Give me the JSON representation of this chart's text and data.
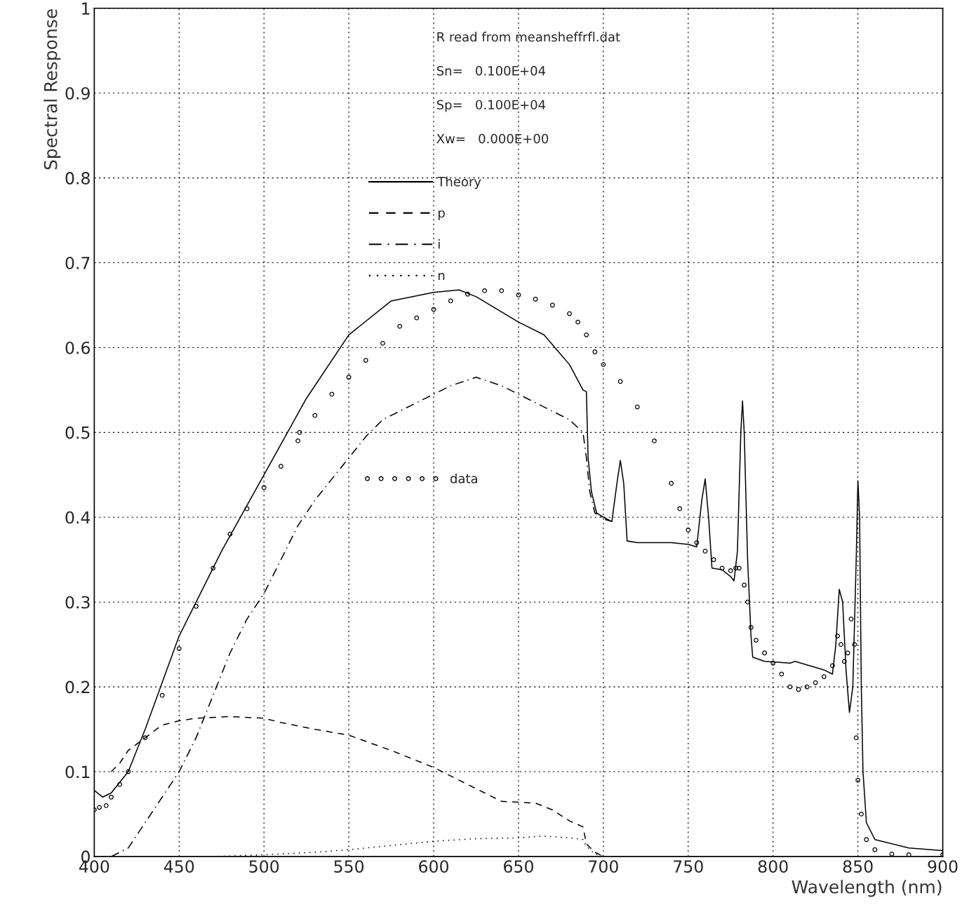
{
  "chart_data": {
    "type": "line",
    "xlabel": "Wavelength (nm)",
    "ylabel": "Spectral Response",
    "annotations": [
      "R read from meansheffrfl.dat",
      "Sn=   0.100E+04",
      "Sp=   0.100E+04",
      "Xw=   0.000E+00"
    ],
    "xlim": [
      400,
      900
    ],
    "ylim": [
      0,
      1
    ],
    "xticks": [
      400,
      450,
      500,
      550,
      600,
      650,
      700,
      750,
      800,
      850,
      900
    ],
    "yticks": [
      0,
      0.1,
      0.2,
      0.3,
      0.4,
      0.5,
      0.6,
      0.7,
      0.8,
      0.9,
      1
    ],
    "grid": true,
    "legend": "top",
    "series": [
      {
        "name": "Theory",
        "line_style": "solid",
        "color": "#000000",
        "x": [
          400,
          405,
          410,
          420,
          430,
          450,
          475,
          500,
          525,
          550,
          575,
          600,
          615,
          625,
          650,
          665,
          680,
          688,
          690,
          691,
          693,
          696,
          700,
          705,
          708,
          710,
          712,
          714,
          720,
          740,
          750,
          755,
          758,
          760,
          762,
          764,
          770,
          775,
          777,
          779,
          781,
          782,
          783,
          785,
          787,
          788,
          795,
          810,
          813,
          830,
          835,
          837,
          839,
          841,
          843,
          845,
          847,
          849,
          850,
          851,
          852,
          853,
          855,
          860,
          880,
          900
        ],
        "values": [
          0.078,
          0.07,
          0.075,
          0.1,
          0.15,
          0.26,
          0.36,
          0.45,
          0.54,
          0.615,
          0.655,
          0.665,
          0.668,
          0.66,
          0.63,
          0.615,
          0.58,
          0.55,
          0.548,
          0.47,
          0.43,
          0.405,
          0.4,
          0.395,
          0.44,
          0.467,
          0.44,
          0.372,
          0.37,
          0.37,
          0.368,
          0.365,
          0.42,
          0.445,
          0.4,
          0.34,
          0.338,
          0.33,
          0.325,
          0.36,
          0.5,
          0.537,
          0.5,
          0.35,
          0.26,
          0.235,
          0.23,
          0.228,
          0.23,
          0.22,
          0.215,
          0.25,
          0.315,
          0.3,
          0.22,
          0.17,
          0.2,
          0.35,
          0.443,
          0.4,
          0.2,
          0.1,
          0.04,
          0.02,
          0.01,
          0.007
        ]
      },
      {
        "name": "p",
        "line_style": "dashed",
        "color": "#000000",
        "x": [
          410,
          415,
          420,
          430,
          440,
          450,
          460,
          480,
          500,
          510,
          530,
          550,
          575,
          600,
          625,
          640,
          660,
          670,
          680,
          688,
          690,
          695,
          700
        ],
        "values": [
          0.1,
          0.11,
          0.125,
          0.14,
          0.155,
          0.16,
          0.163,
          0.165,
          0.163,
          0.158,
          0.15,
          0.143,
          0.125,
          0.105,
          0.08,
          0.065,
          0.063,
          0.055,
          0.042,
          0.035,
          0.015,
          0.005,
          0.0
        ]
      },
      {
        "name": "i",
        "line_style": "dashdot",
        "color": "#000000",
        "x": [
          410,
          420,
          430,
          440,
          450,
          460,
          470,
          480,
          490,
          500,
          510,
          520,
          530,
          540,
          550,
          560,
          570,
          580,
          590,
          600,
          610,
          625,
          640,
          660,
          680,
          688,
          690,
          692,
          695,
          700,
          705
        ],
        "values": [
          0.0,
          0.01,
          0.04,
          0.07,
          0.1,
          0.14,
          0.19,
          0.24,
          0.28,
          0.31,
          0.35,
          0.39,
          0.42,
          0.445,
          0.47,
          0.495,
          0.515,
          0.525,
          0.535,
          0.545,
          0.555,
          0.565,
          0.555,
          0.535,
          0.515,
          0.5,
          0.47,
          0.43,
          0.405,
          0.398,
          0.395
        ]
      },
      {
        "name": "n",
        "line_style": "dotted",
        "color": "#000000",
        "x": [
          470,
          500,
          530,
          550,
          575,
          600,
          625,
          650,
          665,
          680,
          688,
          690,
          695,
          700
        ],
        "values": [
          0.0,
          0.002,
          0.005,
          0.008,
          0.013,
          0.018,
          0.021,
          0.022,
          0.024,
          0.022,
          0.02,
          0.012,
          0.003,
          0.0
        ]
      },
      {
        "name": "data",
        "type": "scatter",
        "marker": "circle",
        "color": "#000000",
        "x": [
          400,
          403,
          407,
          410,
          415,
          420,
          430,
          440,
          450,
          460,
          470,
          480,
          490,
          500,
          510,
          520,
          521,
          530,
          540,
          550,
          560,
          570,
          580,
          590,
          600,
          610,
          620,
          630,
          640,
          650,
          660,
          670,
          680,
          685,
          690,
          695,
          700,
          710,
          720,
          730,
          740,
          745,
          750,
          755,
          760,
          765,
          770,
          775,
          778,
          780,
          783,
          785,
          787,
          790,
          795,
          800,
          805,
          810,
          815,
          820,
          825,
          830,
          835,
          838,
          840,
          842,
          844,
          846,
          848,
          849,
          850,
          852,
          855,
          860,
          870,
          880,
          900
        ],
        "values": [
          0.055,
          0.058,
          0.06,
          0.07,
          0.085,
          0.1,
          0.14,
          0.19,
          0.245,
          0.295,
          0.34,
          0.38,
          0.41,
          0.435,
          0.46,
          0.49,
          0.5,
          0.52,
          0.545,
          0.565,
          0.585,
          0.605,
          0.625,
          0.635,
          0.645,
          0.655,
          0.663,
          0.667,
          0.667,
          0.662,
          0.657,
          0.65,
          0.64,
          0.63,
          0.615,
          0.595,
          0.58,
          0.56,
          0.53,
          0.49,
          0.44,
          0.41,
          0.385,
          0.37,
          0.36,
          0.35,
          0.34,
          0.337,
          0.34,
          0.34,
          0.32,
          0.3,
          0.27,
          0.255,
          0.24,
          0.228,
          0.215,
          0.2,
          0.197,
          0.2,
          0.205,
          0.212,
          0.225,
          0.26,
          0.25,
          0.23,
          0.24,
          0.28,
          0.25,
          0.14,
          0.09,
          0.05,
          0.02,
          0.008,
          0.003,
          0.002,
          0.002
        ]
      }
    ]
  }
}
